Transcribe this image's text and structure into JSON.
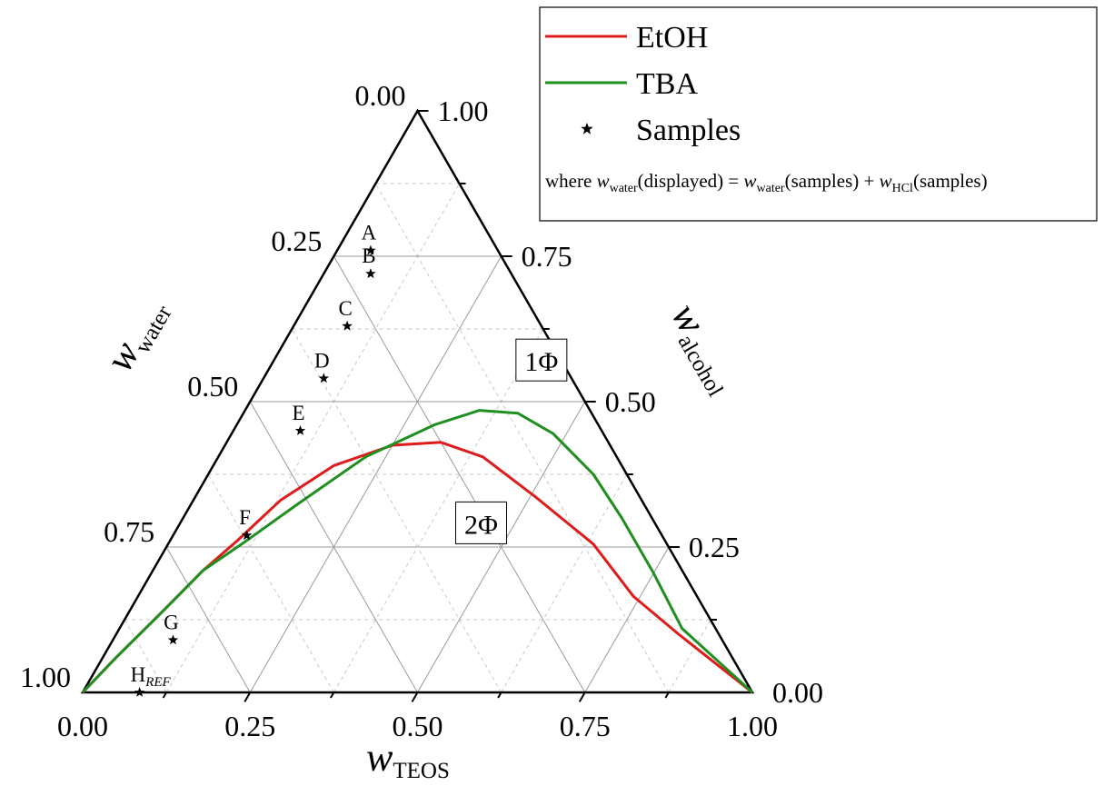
{
  "chart_data": {
    "type": "ternary",
    "axes": {
      "bottom": {
        "label_main": "w",
        "label_sub": "TEOS",
        "ticks": [
          "0.00",
          "0.25",
          "0.50",
          "0.75",
          "1.00"
        ]
      },
      "left": {
        "label_main": "w",
        "label_sub": "water",
        "ticks": [
          "0.00",
          "0.25",
          "0.50",
          "0.75",
          "1.00"
        ]
      },
      "right": {
        "label_main": "w",
        "label_sub": "alcohol",
        "ticks": [
          "0.00",
          "0.25",
          "0.50",
          "0.75",
          "1.00"
        ]
      }
    },
    "grid": true,
    "series": [
      {
        "name": "EtOH",
        "color": "#e01b1b",
        "points": [
          {
            "teos": 0.0,
            "alcohol": 0.0
          },
          {
            "teos": 0.02,
            "alcohol": 0.06
          },
          {
            "teos": 0.05,
            "alcohol": 0.14
          },
          {
            "teos": 0.075,
            "alcohol": 0.21
          },
          {
            "teos": 0.1,
            "alcohol": 0.26
          },
          {
            "teos": 0.13,
            "alcohol": 0.33
          },
          {
            "teos": 0.18,
            "alcohol": 0.39
          },
          {
            "teos": 0.25,
            "alcohol": 0.425
          },
          {
            "teos": 0.32,
            "alcohol": 0.43
          },
          {
            "teos": 0.395,
            "alcohol": 0.405
          },
          {
            "teos": 0.51,
            "alcohol": 0.335
          },
          {
            "teos": 0.635,
            "alcohol": 0.255
          },
          {
            "teos": 0.74,
            "alcohol": 0.165
          },
          {
            "teos": 0.84,
            "alcohol": 0.1
          },
          {
            "teos": 1.0,
            "alcohol": 0.0
          }
        ]
      },
      {
        "name": "TBA",
        "color": "#1f8f1f",
        "points": [
          {
            "teos": 0.0,
            "alcohol": 0.0
          },
          {
            "teos": 0.02,
            "alcohol": 0.06
          },
          {
            "teos": 0.05,
            "alcohol": 0.14
          },
          {
            "teos": 0.075,
            "alcohol": 0.21
          },
          {
            "teos": 0.11,
            "alcohol": 0.255
          },
          {
            "teos": 0.16,
            "alcohol": 0.325
          },
          {
            "teos": 0.22,
            "alcohol": 0.405
          },
          {
            "teos": 0.295,
            "alcohol": 0.46
          },
          {
            "teos": 0.35,
            "alcohol": 0.485
          },
          {
            "teos": 0.41,
            "alcohol": 0.48
          },
          {
            "teos": 0.48,
            "alcohol": 0.445
          },
          {
            "teos": 0.575,
            "alcohol": 0.375
          },
          {
            "teos": 0.655,
            "alcohol": 0.3
          },
          {
            "teos": 0.75,
            "alcohol": 0.205
          },
          {
            "teos": 0.84,
            "alcohol": 0.11
          },
          {
            "teos": 1.0,
            "alcohol": 0.0
          }
        ]
      }
    ],
    "samples": {
      "name": "Samples",
      "points": [
        {
          "label": "A",
          "teos": 0.05,
          "alcohol": 0.76
        },
        {
          "label": "B",
          "teos": 0.07,
          "alcohol": 0.72
        },
        {
          "label": "C",
          "teos": 0.08,
          "alcohol": 0.63
        },
        {
          "label": "D",
          "teos": 0.09,
          "alcohol": 0.54
        },
        {
          "label": "E",
          "teos": 0.1,
          "alcohol": 0.45
        },
        {
          "label": "F",
          "teos": 0.11,
          "alcohol": 0.27
        },
        {
          "label": "G",
          "teos": 0.09,
          "alcohol": 0.09
        },
        {
          "label": "H",
          "label_sub": "REF",
          "teos": 0.085,
          "alcohol": 0.0
        }
      ]
    },
    "region_labels": [
      {
        "text": "1Φ",
        "teos": 0.4,
        "alcohol": 0.57
      },
      {
        "text": "2Φ",
        "teos": 0.45,
        "alcohol": 0.29
      }
    ],
    "legend": {
      "placement": "top-right",
      "entries": [
        {
          "label": "EtOH",
          "style": "line",
          "color": "#e01b1b"
        },
        {
          "label": "TBA",
          "style": "line",
          "color": "#1f8f1f"
        },
        {
          "label": "Samples",
          "style": "star",
          "color": "#000000"
        }
      ],
      "note": {
        "prefix": "where ",
        "w1": "w",
        "sub1": "water",
        "mid": "(displayed)  = ",
        "w2": "w",
        "sub2": "water",
        "mid2": "(samples) + ",
        "w3": "w",
        "sub3": "HCl",
        "suffix": "(samples)"
      }
    }
  }
}
